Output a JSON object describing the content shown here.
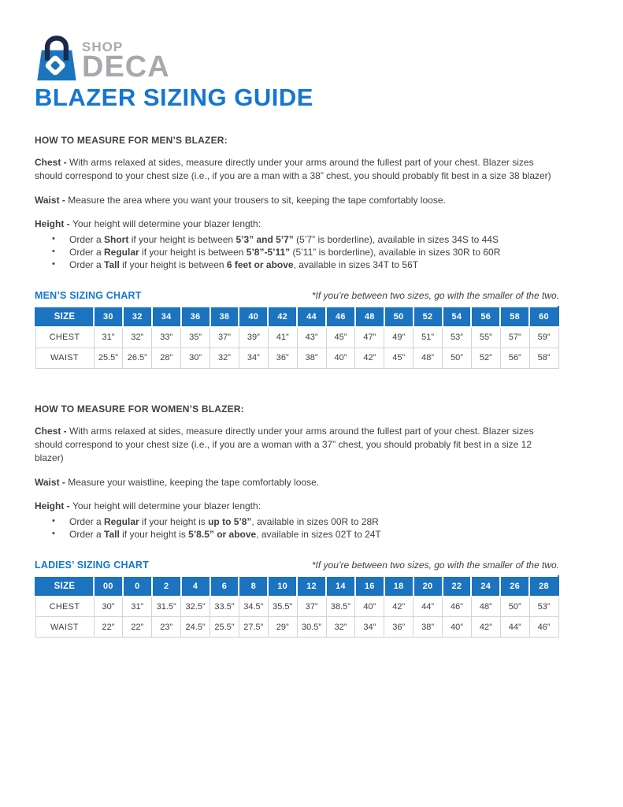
{
  "logo": {
    "shop": "SHOP",
    "deca": "DECA",
    "bag_color": "#1b75bc",
    "handle_color": "#1b2a4a",
    "text_color": "#a7a9ac"
  },
  "title": "BLAZER SIZING GUIDE",
  "colors": {
    "accent_blue": "#1576d2",
    "table_header_blue": "#1c73bf",
    "body_text": "#414042",
    "border_gray": "#d1d3d4"
  },
  "sections": [
    {
      "heading": "HOW TO MEASURE FOR MEN’S BLAZER:",
      "paragraphs": [
        {
          "segments": [
            {
              "t": "Chest - ",
              "b": true
            },
            {
              "t": "With arms relaxed at sides, measure directly under your arms around the fullest part of your chest. Blazer sizes should correspond to your chest size (i.e., if you are a man with a 38” chest, you should probably fit best in a size 38 blazer)",
              "b": false
            }
          ]
        },
        {
          "segments": [
            {
              "t": "Waist - ",
              "b": true
            },
            {
              "t": "Measure the area where you want your trousers to sit, keeping the tape comfortably loose.",
              "b": false
            }
          ]
        },
        {
          "segments": [
            {
              "t": "Height - ",
              "b": true
            },
            {
              "t": "Your height will determine your blazer length:",
              "b": false
            }
          ]
        }
      ],
      "bullets": [
        [
          {
            "t": "Order a ",
            "b": false
          },
          {
            "t": "Short",
            "b": true
          },
          {
            "t": " if your height is between ",
            "b": false
          },
          {
            "t": "5’3” and 5’7”",
            "b": true
          },
          {
            "t": " (5’7” is borderline), available in sizes 34S to 44S",
            "b": false
          }
        ],
        [
          {
            "t": "Order a ",
            "b": false
          },
          {
            "t": "Regular",
            "b": true
          },
          {
            "t": " if your height is between ",
            "b": false
          },
          {
            "t": "5’8”-5’11”",
            "b": true
          },
          {
            "t": " (5’11” is borderline), available in sizes 30R to 60R",
            "b": false
          }
        ],
        [
          {
            "t": "Order a ",
            "b": false
          },
          {
            "t": "Tall",
            "b": true
          },
          {
            "t": " if your height is between ",
            "b": false
          },
          {
            "t": "6 feet or above",
            "b": true
          },
          {
            "t": ", available in sizes 34T to 56T",
            "b": false
          }
        ]
      ],
      "chart": {
        "title": "MEN’S SIZING CHART",
        "note": "*If you’re between two sizes, go with the smaller of the two.",
        "header": [
          "SIZE",
          "30",
          "32",
          "34",
          "36",
          "38",
          "40",
          "42",
          "44",
          "46",
          "48",
          "50",
          "52",
          "54",
          "56",
          "58",
          "60"
        ],
        "rows": [
          {
            "label": "CHEST",
            "values": [
              "31”",
              "32”",
              "33”",
              "35”",
              "37”",
              "39”",
              "41”",
              "43”",
              "45”",
              "47”",
              "49”",
              "51”",
              "53”",
              "55”",
              "57”",
              "59”"
            ]
          },
          {
            "label": "WAIST",
            "values": [
              "25.5”",
              "26.5”",
              "28”",
              "30”",
              "32”",
              "34”",
              "36”",
              "38”",
              "40”",
              "42”",
              "45”",
              "48”",
              "50”",
              "52”",
              "56”",
              "58”"
            ]
          }
        ]
      }
    },
    {
      "heading": "HOW TO MEASURE FOR WOMEN’S BLAZER:",
      "paragraphs": [
        {
          "segments": [
            {
              "t": "Chest - ",
              "b": true
            },
            {
              "t": "With arms relaxed at sides, measure directly under your arms around the fullest part of your chest. Blazer sizes should correspond to your chest size (i.e., if you are a woman with a 37” chest, you should probably fit best in a size 12 blazer)",
              "b": false
            }
          ]
        },
        {
          "segments": [
            {
              "t": "Waist - ",
              "b": true
            },
            {
              "t": "Measure your waistline, keeping the tape comfortably loose.",
              "b": false
            }
          ]
        },
        {
          "segments": [
            {
              "t": "Height - ",
              "b": true
            },
            {
              "t": "Your height will determine your blazer length:",
              "b": false
            }
          ]
        }
      ],
      "bullets": [
        [
          {
            "t": "Order a ",
            "b": false
          },
          {
            "t": "Regular",
            "b": true
          },
          {
            "t": " if your height is ",
            "b": false
          },
          {
            "t": "up to 5’8”",
            "b": true
          },
          {
            "t": ", available in sizes 00R to 28R",
            "b": false
          }
        ],
        [
          {
            "t": "Order a ",
            "b": false
          },
          {
            "t": "Tall",
            "b": true
          },
          {
            "t": " if your height is ",
            "b": false
          },
          {
            "t": "5’8.5” or above",
            "b": true
          },
          {
            "t": ", available in sizes 02T to 24T",
            "b": false
          }
        ]
      ],
      "chart": {
        "title": "LADIES’ SIZING CHART",
        "note": "*If you’re between two sizes, go with the smaller of the two.",
        "header": [
          "SIZE",
          "00",
          "0",
          "2",
          "4",
          "6",
          "8",
          "10",
          "12",
          "14",
          "16",
          "18",
          "20",
          "22",
          "24",
          "26",
          "28"
        ],
        "rows": [
          {
            "label": "CHEST",
            "values": [
              "30”",
              "31”",
              "31.5”",
              "32.5”",
              "33.5”",
              "34.5”",
              "35.5”",
              "37”",
              "38.5”",
              "40”",
              "42”",
              "44”",
              "46”",
              "48”",
              "50”",
              "53”"
            ]
          },
          {
            "label": "WAIST",
            "values": [
              "22”",
              "22”",
              "23”",
              "24.5”",
              "25.5”",
              "27.5”",
              "29”",
              "30.5”",
              "32”",
              "34”",
              "36”",
              "38”",
              "40”",
              "42”",
              "44”",
              "46”"
            ]
          }
        ]
      }
    }
  ]
}
